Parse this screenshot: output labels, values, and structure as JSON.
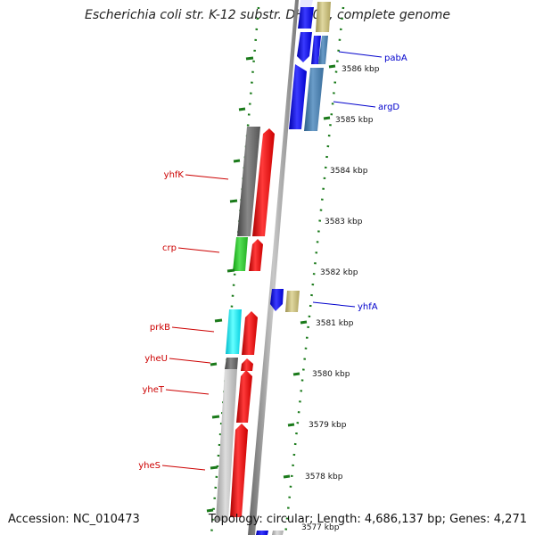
{
  "title": "Escherichia coli str. K-12 substr. DH10B, complete genome",
  "footer": {
    "accession": "Accession: NC_010473",
    "stats": "Topology: circular; Length: 4,686,137 bp; Genes: 4,271"
  },
  "ticks": [
    {
      "label": "3586 kbp"
    },
    {
      "label": "3585 kbp"
    },
    {
      "label": "3584 kbp"
    },
    {
      "label": "3583 kbp"
    },
    {
      "label": "3582 kbp"
    },
    {
      "label": "3581 kbp"
    },
    {
      "label": "3580 kbp"
    },
    {
      "label": "3579 kbp"
    },
    {
      "label": "3578 kbp"
    },
    {
      "label": "3577 kbp"
    }
  ],
  "genes_right": [
    {
      "label": "pabA"
    },
    {
      "label": "argD"
    },
    {
      "label": "yhfA"
    }
  ],
  "genes_left": [
    {
      "label": "yhfK"
    },
    {
      "label": "crp"
    },
    {
      "label": "prkB"
    },
    {
      "label": "yheU"
    },
    {
      "label": "yheT"
    },
    {
      "label": "yheS"
    }
  ],
  "colors": {
    "forward_cds": "#ff0000",
    "reverse_cds": "#0000ff",
    "left_label": "#cc0000",
    "right_label": "#0000cc",
    "tick_marks": "#1a7a1a"
  }
}
